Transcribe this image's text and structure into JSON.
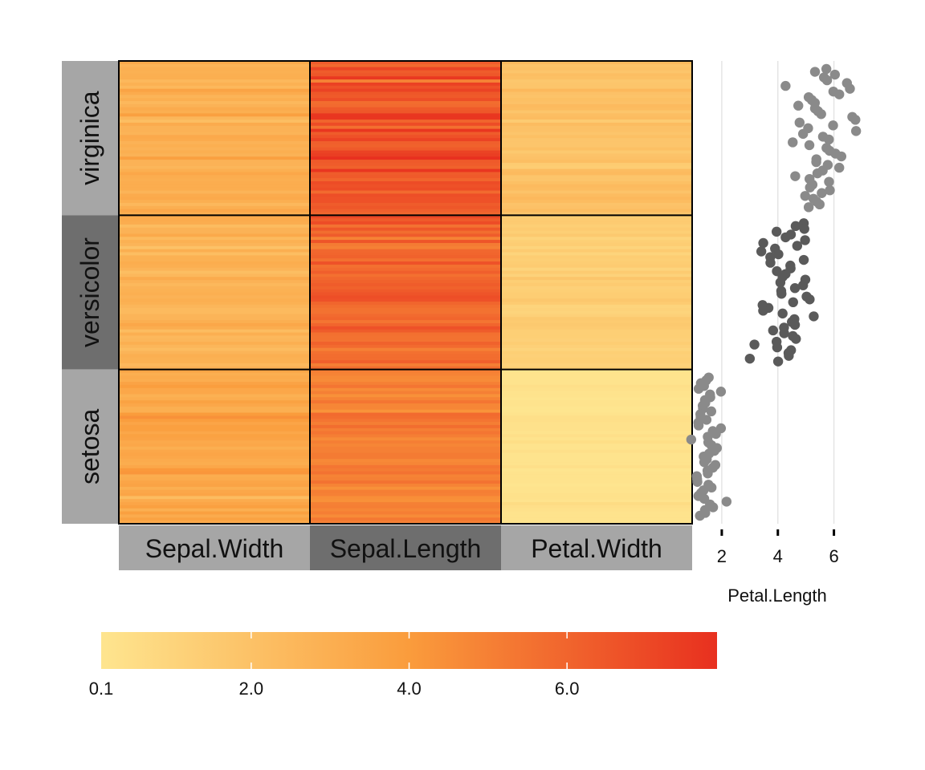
{
  "chart_data": [
    {
      "type": "heatmap",
      "title": "",
      "xlabel": "",
      "ylabel": "",
      "groups": [
        "setosa",
        "versicolor",
        "virginica"
      ],
      "group_order_top_to_bottom": [
        "virginica",
        "versicolor",
        "setosa"
      ],
      "columns": [
        "Sepal.Width",
        "Sepal.Length",
        "Petal.Width"
      ],
      "rows_per_group": 50,
      "series": [
        {
          "group": "virginica",
          "Sepal.Width": [
            3.3,
            2.7,
            3.0,
            2.9,
            3.0,
            3.0,
            2.5,
            2.9,
            2.5,
            3.6,
            3.2,
            2.7,
            3.0,
            2.5,
            2.8,
            3.2,
            3.0,
            3.8,
            2.6,
            2.2,
            3.2,
            2.8,
            2.8,
            2.7,
            3.3,
            3.2,
            2.8,
            3.0,
            2.8,
            3.0,
            2.8,
            3.8,
            2.8,
            2.8,
            2.6,
            3.0,
            3.4,
            3.1,
            3.0,
            3.1,
            3.1,
            3.1,
            2.7,
            3.2,
            3.3,
            3.0,
            2.5,
            3.0,
            3.4,
            3.0
          ],
          "Sepal.Length": [
            6.3,
            5.8,
            7.1,
            6.3,
            6.5,
            7.6,
            4.9,
            7.3,
            6.7,
            7.2,
            6.5,
            6.4,
            6.8,
            5.7,
            5.8,
            6.4,
            6.5,
            7.7,
            7.7,
            6.0,
            6.9,
            5.6,
            7.7,
            6.3,
            6.7,
            7.2,
            6.2,
            6.1,
            6.4,
            7.2,
            7.4,
            7.9,
            6.4,
            6.3,
            6.1,
            7.7,
            6.3,
            6.4,
            6.0,
            6.9,
            6.7,
            6.9,
            5.8,
            6.8,
            6.7,
            6.7,
            6.3,
            6.5,
            6.2,
            5.9
          ],
          "Petal.Width": [
            2.5,
            1.9,
            2.1,
            1.8,
            2.2,
            2.1,
            1.7,
            1.8,
            1.8,
            2.5,
            2.0,
            1.9,
            2.1,
            2.0,
            2.4,
            2.3,
            1.8,
            2.2,
            2.3,
            1.5,
            2.3,
            2.0,
            2.0,
            1.8,
            2.1,
            1.8,
            1.8,
            1.8,
            2.1,
            1.6,
            1.9,
            2.0,
            2.2,
            1.5,
            1.4,
            2.3,
            2.4,
            1.8,
            1.8,
            2.1,
            2.4,
            2.3,
            1.9,
            2.3,
            2.5,
            2.3,
            1.9,
            2.0,
            2.3,
            1.8
          ]
        },
        {
          "group": "versicolor",
          "Sepal.Width": [
            3.2,
            3.2,
            3.1,
            2.3,
            2.8,
            2.8,
            3.3,
            2.4,
            2.9,
            2.7,
            2.0,
            3.0,
            2.2,
            2.9,
            2.9,
            3.1,
            3.0,
            2.7,
            2.2,
            2.5,
            3.2,
            2.8,
            2.5,
            2.8,
            2.9,
            3.0,
            2.8,
            3.0,
            2.9,
            2.6,
            2.4,
            2.4,
            2.7,
            2.7,
            3.0,
            3.4,
            3.1,
            2.3,
            3.0,
            2.5,
            2.6,
            3.0,
            2.6,
            2.3,
            2.7,
            3.0,
            2.9,
            2.9,
            2.5,
            2.8
          ],
          "Sepal.Length": [
            7.0,
            6.4,
            6.9,
            5.5,
            6.5,
            5.7,
            6.3,
            4.9,
            6.6,
            5.2,
            5.0,
            5.9,
            6.0,
            6.1,
            5.6,
            6.7,
            5.6,
            5.8,
            6.2,
            5.6,
            5.9,
            6.1,
            6.3,
            6.1,
            6.4,
            6.6,
            6.8,
            6.7,
            6.0,
            5.7,
            5.5,
            5.5,
            5.8,
            6.0,
            5.4,
            6.0,
            6.7,
            6.3,
            5.6,
            5.5,
            5.5,
            6.1,
            5.8,
            5.0,
            5.6,
            5.7,
            5.7,
            6.2,
            5.1,
            5.7
          ],
          "Petal.Width": [
            1.4,
            1.5,
            1.5,
            1.3,
            1.5,
            1.3,
            1.6,
            1.0,
            1.3,
            1.4,
            1.0,
            1.5,
            1.0,
            1.4,
            1.3,
            1.4,
            1.5,
            1.0,
            1.5,
            1.1,
            1.8,
            1.3,
            1.5,
            1.2,
            1.3,
            1.4,
            1.4,
            1.7,
            1.5,
            1.0,
            1.1,
            1.0,
            1.2,
            1.6,
            1.5,
            1.6,
            1.5,
            1.3,
            1.3,
            1.3,
            1.2,
            1.4,
            1.2,
            1.0,
            1.3,
            1.2,
            1.3,
            1.3,
            1.1,
            1.3
          ]
        },
        {
          "group": "setosa",
          "Sepal.Width": [
            3.5,
            3.0,
            3.2,
            3.1,
            3.6,
            3.9,
            3.4,
            3.4,
            2.9,
            3.1,
            3.7,
            3.4,
            3.0,
            3.0,
            4.0,
            4.4,
            3.9,
            3.5,
            3.8,
            3.8,
            3.4,
            3.7,
            3.6,
            3.3,
            3.4,
            3.0,
            3.4,
            3.5,
            3.4,
            3.2,
            3.1,
            3.4,
            4.1,
            4.2,
            3.1,
            3.2,
            3.5,
            3.6,
            3.0,
            3.4,
            3.5,
            2.3,
            3.2,
            3.5,
            3.8,
            3.0,
            3.8,
            3.2,
            3.7,
            3.3
          ],
          "Sepal.Length": [
            5.1,
            4.9,
            4.7,
            4.6,
            5.0,
            5.4,
            4.6,
            5.0,
            4.4,
            4.9,
            5.4,
            4.8,
            4.8,
            4.3,
            5.8,
            5.7,
            5.4,
            5.1,
            5.7,
            5.1,
            5.4,
            5.1,
            4.6,
            5.1,
            4.8,
            5.0,
            5.0,
            5.2,
            5.2,
            4.7,
            4.8,
            5.4,
            5.2,
            5.5,
            4.9,
            5.0,
            5.5,
            4.9,
            4.4,
            5.1,
            5.0,
            4.5,
            4.4,
            5.0,
            5.1,
            4.8,
            5.1,
            4.6,
            5.3,
            5.0
          ],
          "Petal.Width": [
            0.2,
            0.2,
            0.2,
            0.2,
            0.2,
            0.4,
            0.3,
            0.2,
            0.2,
            0.1,
            0.2,
            0.2,
            0.1,
            0.1,
            0.2,
            0.4,
            0.4,
            0.3,
            0.3,
            0.3,
            0.2,
            0.4,
            0.2,
            0.5,
            0.2,
            0.2,
            0.4,
            0.2,
            0.2,
            0.2,
            0.2,
            0.4,
            0.1,
            0.2,
            0.2,
            0.2,
            0.2,
            0.1,
            0.2,
            0.2,
            0.3,
            0.3,
            0.2,
            0.6,
            0.4,
            0.3,
            0.2,
            0.2,
            0.2,
            0.2
          ]
        }
      ],
      "legend": {
        "position": "bottom",
        "min": 0.1,
        "max": 7.9,
        "tick_values": [
          0.1,
          2.0,
          4.0,
          6.0
        ],
        "tick_labels": [
          "0.1",
          "2.0",
          "4.0",
          "6.0"
        ],
        "color_low": "#FEE58F",
        "color_mid": "#FA9C3C",
        "color_high": "#E8301F"
      }
    },
    {
      "type": "scatter",
      "title": "",
      "xlabel": "Petal.Length",
      "ylabel": "",
      "x_ticks": [
        2,
        4,
        6
      ],
      "xlim": [
        1.0,
        6.9
      ],
      "grid": true,
      "series": [
        {
          "name": "virginica",
          "color": "#8A8A8A",
          "values": [
            6.0,
            5.1,
            5.9,
            5.6,
            5.8,
            6.6,
            4.5,
            6.3,
            5.8,
            6.1,
            5.1,
            5.3,
            5.5,
            5.0,
            5.1,
            5.3,
            5.5,
            6.7,
            6.9,
            5.0,
            5.7,
            4.9,
            6.7,
            4.9,
            5.7,
            6.0,
            4.8,
            4.9,
            5.6,
            5.8,
            6.1,
            6.4,
            5.6,
            5.1,
            5.6,
            6.1,
            5.6,
            5.5,
            4.8,
            5.4,
            5.6,
            5.1,
            5.1,
            5.9,
            5.7,
            5.2,
            5.0,
            5.2,
            5.4,
            5.1
          ]
        },
        {
          "name": "versicolor",
          "color": "#5A5A5A",
          "values": [
            4.7,
            4.5,
            4.9,
            4.0,
            4.6,
            4.5,
            4.7,
            3.3,
            4.6,
            3.9,
            3.5,
            4.2,
            4.0,
            4.7,
            3.6,
            4.4,
            4.5,
            4.1,
            4.5,
            3.9,
            4.8,
            4.0,
            4.9,
            4.7,
            4.3,
            4.4,
            4.8,
            5.0,
            4.5,
            3.5,
            3.8,
            3.7,
            3.9,
            5.1,
            4.5,
            4.5,
            4.7,
            4.4,
            4.1,
            4.0,
            4.4,
            4.6,
            4.0,
            3.3,
            4.2,
            4.2,
            4.2,
            4.3,
            3.0,
            4.1
          ]
        },
        {
          "name": "setosa",
          "color": "#8A8A8A",
          "values": [
            1.4,
            1.4,
            1.3,
            1.5,
            1.4,
            1.7,
            1.4,
            1.5,
            1.4,
            1.5,
            1.5,
            1.6,
            1.4,
            1.1,
            1.2,
            1.5,
            1.3,
            1.4,
            1.7,
            1.5,
            1.7,
            1.5,
            1.0,
            1.7,
            1.9,
            1.6,
            1.6,
            1.5,
            1.4,
            1.6,
            1.6,
            1.5,
            1.5,
            1.4,
            1.5,
            1.2,
            1.3,
            1.4,
            1.3,
            1.5,
            1.3,
            1.3,
            1.3,
            1.6,
            1.9,
            1.4,
            1.6,
            1.4,
            1.5,
            1.4
          ]
        }
      ]
    }
  ],
  "strip_colors": {
    "light": "#A6A6A6",
    "dark": "#6E6E6E"
  }
}
